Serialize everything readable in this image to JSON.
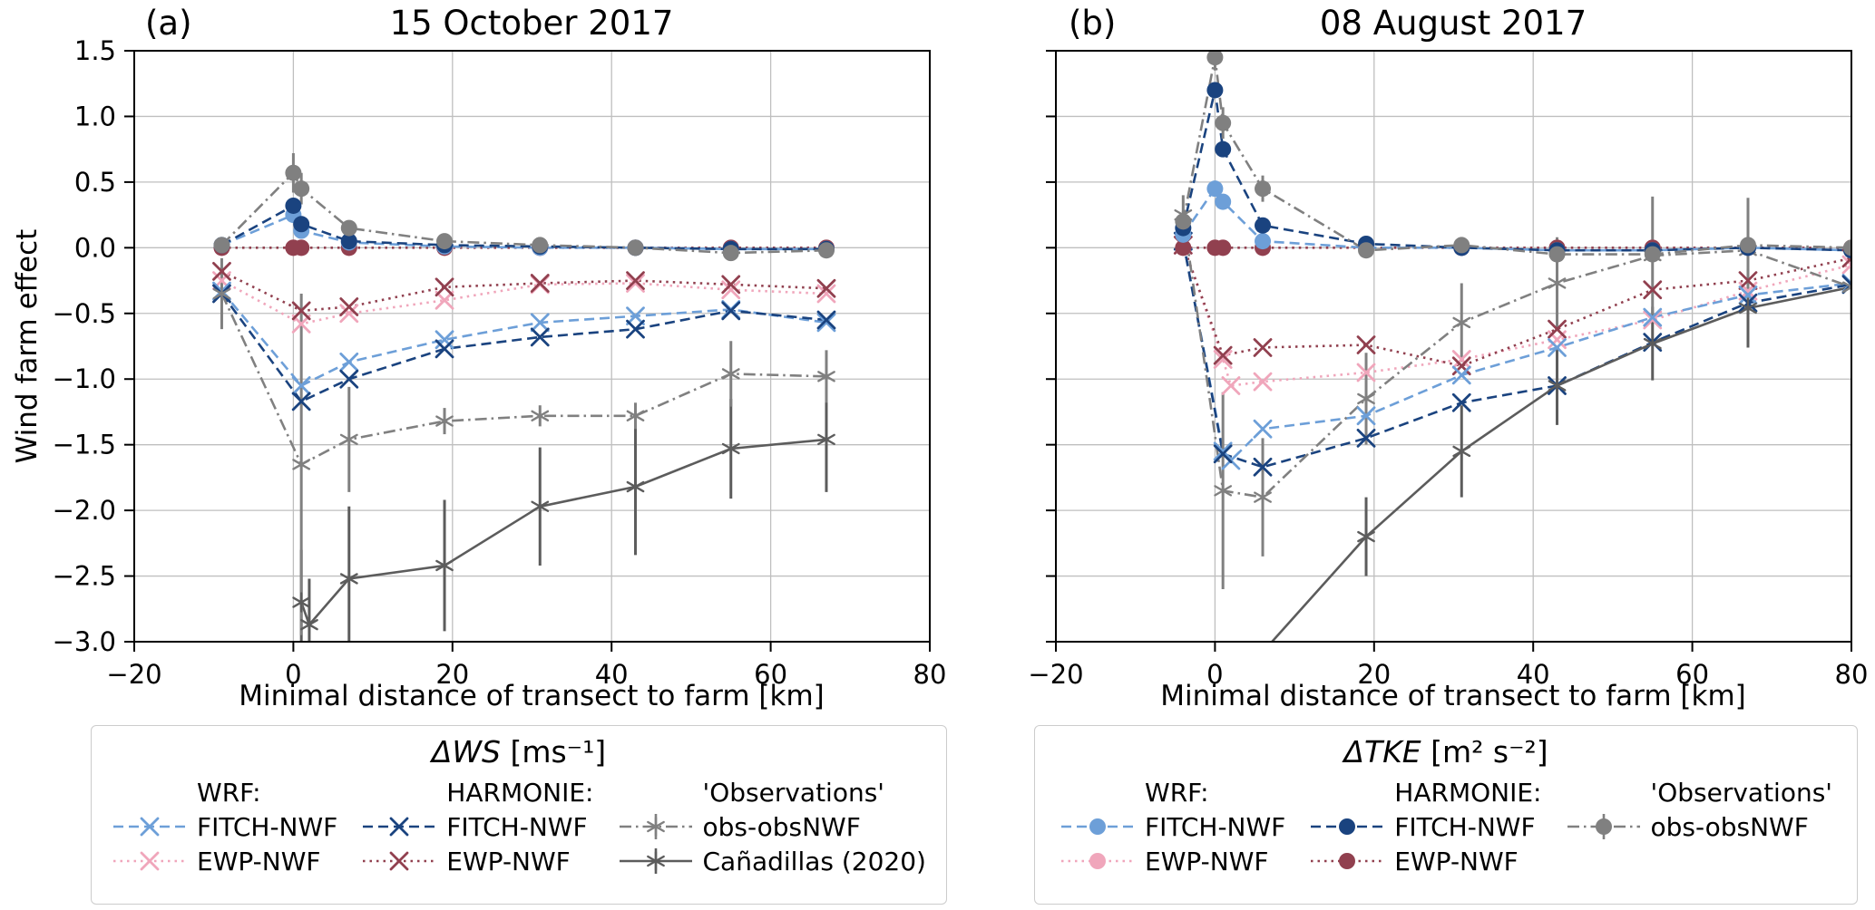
{
  "figure": {
    "ylabel": "Wind farm effect"
  },
  "styles": {
    "ws_wrf_fitch": {
      "color": "#6D9FD8",
      "ls": "dashed",
      "marker": "x",
      "errorbar": false
    },
    "ws_wrf_ewp": {
      "color": "#F0A6BB",
      "ls": "dotted",
      "marker": "x",
      "errorbar": false
    },
    "ws_harmonie_fitch": {
      "color": "#1A437F",
      "ls": "dashed",
      "marker": "x",
      "errorbar": false
    },
    "ws_harmonie_ewp": {
      "color": "#91404F",
      "ls": "dotted",
      "marker": "x",
      "errorbar": false
    },
    "ws_obs": {
      "color": "#808080",
      "ls": "dashdot",
      "marker": "star",
      "errorbar": true
    },
    "ws_canadillas": {
      "color": "#5C5C5C",
      "ls": "solid",
      "marker": "star",
      "errorbar": true
    },
    "tke_wrf_fitch": {
      "color": "#6D9FD8",
      "ls": "dashed",
      "marker": "o",
      "errorbar": false
    },
    "tke_wrf_ewp": {
      "color": "#F0A6BB",
      "ls": "dotted",
      "marker": "o",
      "errorbar": false
    },
    "tke_harmonie_fitch": {
      "color": "#1A437F",
      "ls": "dashed",
      "marker": "o",
      "errorbar": false
    },
    "tke_harmonie_ewp": {
      "color": "#91404F",
      "ls": "dotted",
      "marker": "o",
      "errorbar": false
    },
    "tke_obs": {
      "color": "#808080",
      "ls": "dashdot",
      "marker": "o",
      "errorbar": true
    }
  },
  "chart_data": [
    {
      "id": "a",
      "type": "line",
      "tag": "(a)",
      "title": "15 October 2017",
      "xlabel": "Minimal distance of transect to farm [km]",
      "ylabel": "Wind farm effect",
      "xlim": [
        -20,
        80
      ],
      "ylim": [
        -3.0,
        1.5
      ],
      "xticks": [
        -20,
        0,
        20,
        40,
        60,
        80
      ],
      "xtick_labels": [
        "−20",
        "0",
        "20",
        "40",
        "60",
        "80"
      ],
      "yticks": [
        1.5,
        1.0,
        0.5,
        0.0,
        -0.5,
        -1.0,
        -1.5,
        -2.0,
        -2.5,
        -3.0
      ],
      "ytick_labels": [
        "1.5",
        "1.0",
        "0.5",
        "0.0",
        "−0.5",
        "−1.0",
        "−1.5",
        "−2.0",
        "−2.5",
        "−3.0"
      ],
      "show_ytick_labels": true,
      "grid": true,
      "series": [
        {
          "name": "ΔWS WRF EWP-NWF",
          "style": "ws_wrf_ewp",
          "x": [
            -9,
            1,
            7,
            19,
            31,
            43,
            55,
            67
          ],
          "y": [
            -0.25,
            -0.58,
            -0.5,
            -0.4,
            -0.28,
            -0.27,
            -0.32,
            -0.35
          ]
        },
        {
          "name": "ΔWS HARMONIE EWP-NWF",
          "style": "ws_harmonie_ewp",
          "x": [
            -9,
            1,
            7,
            19,
            31,
            43,
            55,
            67
          ],
          "y": [
            -0.18,
            -0.48,
            -0.45,
            -0.3,
            -0.27,
            -0.25,
            -0.28,
            -0.31
          ]
        },
        {
          "name": "ΔWS WRF FITCH-NWF",
          "style": "ws_wrf_fitch",
          "x": [
            -9,
            1,
            7,
            19,
            31,
            43,
            55,
            67
          ],
          "y": [
            -0.33,
            -1.05,
            -0.87,
            -0.7,
            -0.57,
            -0.52,
            -0.47,
            -0.57
          ]
        },
        {
          "name": "ΔWS HARMONIE FITCH-NWF",
          "style": "ws_harmonie_fitch",
          "x": [
            -9,
            1,
            7,
            19,
            31,
            43,
            55,
            67
          ],
          "y": [
            -0.35,
            -1.17,
            -1.0,
            -0.77,
            -0.68,
            -0.62,
            -0.48,
            -0.55
          ]
        },
        {
          "name": "ΔWS Cañadillas (2020)",
          "style": "ws_canadillas",
          "x": [
            1,
            2,
            7,
            19,
            31,
            43,
            55,
            67
          ],
          "y": [
            -2.7,
            -2.87,
            -2.52,
            -2.42,
            -1.97,
            -1.82,
            -1.53,
            -1.46
          ],
          "yerr": [
            0.4,
            0.35,
            0.55,
            0.5,
            0.45,
            0.52,
            0.38,
            0.4
          ]
        },
        {
          "name": "ΔWS obs-obsNWF",
          "style": "ws_obs",
          "x": [
            -9,
            1,
            7,
            19,
            31,
            43,
            55,
            67
          ],
          "y": [
            -0.35,
            -1.65,
            -1.46,
            -1.32,
            -1.28,
            -1.28,
            -0.96,
            -0.98
          ],
          "yerr": [
            0.27,
            1.3,
            0.4,
            0.1,
            0.08,
            0.1,
            0.25,
            0.2
          ]
        },
        {
          "name": "ΔTKE WRF EWP-NWF",
          "style": "tke_wrf_ewp",
          "x": [
            -9,
            0,
            1,
            7,
            19,
            31,
            43,
            55,
            67
          ],
          "y": [
            0,
            0,
            0,
            0,
            0,
            0,
            0,
            0,
            0
          ]
        },
        {
          "name": "ΔTKE HARMONIE EWP-NWF",
          "style": "tke_harmonie_ewp",
          "x": [
            -9,
            0,
            1,
            7,
            19,
            31,
            43,
            55,
            67
          ],
          "y": [
            0,
            0,
            0,
            0,
            0,
            0,
            0,
            0,
            0
          ]
        },
        {
          "name": "ΔTKE WRF FITCH-NWF",
          "style": "tke_wrf_fitch",
          "x": [
            -9,
            0,
            1,
            7,
            19,
            31,
            43,
            55,
            67
          ],
          "y": [
            0.02,
            0.25,
            0.13,
            0.04,
            0.01,
            0.0,
            0.0,
            -0.01,
            -0.01
          ]
        },
        {
          "name": "ΔTKE HARMONIE FITCH-NWF",
          "style": "tke_harmonie_fitch",
          "x": [
            -9,
            0,
            1,
            7,
            19,
            31,
            43,
            55,
            67
          ],
          "y": [
            0.02,
            0.32,
            0.18,
            0.05,
            0.02,
            0.01,
            0.0,
            -0.01,
            -0.01
          ]
        },
        {
          "name": "ΔTKE obs-obsNWF",
          "style": "tke_obs",
          "x": [
            -9,
            0,
            1,
            7,
            19,
            31,
            43,
            55,
            67
          ],
          "y": [
            0.02,
            0.57,
            0.45,
            0.15,
            0.05,
            0.02,
            0.0,
            -0.04,
            -0.02
          ],
          "yerr": [
            0.05,
            0.15,
            0.12,
            0.06,
            0.03,
            0.02,
            0.02,
            0.04,
            0.02
          ]
        }
      ]
    },
    {
      "id": "b",
      "type": "line",
      "tag": "(b)",
      "title": "08 August 2017",
      "xlabel": "Minimal distance of transect to farm [km]",
      "ylabel": "Wind farm effect",
      "xlim": [
        -20,
        80
      ],
      "ylim": [
        -3.0,
        1.5
      ],
      "xticks": [
        -20,
        0,
        20,
        40,
        60,
        80
      ],
      "xtick_labels": [
        "−20",
        "0",
        "20",
        "40",
        "60",
        "80"
      ],
      "yticks": [
        1.5,
        1.0,
        0.5,
        0.0,
        -0.5,
        -1.0,
        -1.5,
        -2.0,
        -2.5,
        -3.0
      ],
      "ytick_labels": [
        "1.5",
        "1.0",
        "0.5",
        "0.0",
        "−0.5",
        "−1.0",
        "−1.5",
        "−2.0",
        "−2.5",
        "−3.0"
      ],
      "show_ytick_labels": false,
      "grid": true,
      "series": [
        {
          "name": "ΔWS WRF EWP-NWF",
          "style": "ws_wrf_ewp",
          "x": [
            -4,
            1,
            2,
            6,
            19,
            31,
            43,
            55,
            67,
            80
          ],
          "y": [
            0.02,
            -0.85,
            -1.05,
            -1.02,
            -0.95,
            -0.85,
            -0.7,
            -0.55,
            -0.33,
            -0.13
          ]
        },
        {
          "name": "ΔWS HARMONIE EWP-NWF",
          "style": "ws_harmonie_ewp",
          "x": [
            -4,
            1,
            6,
            19,
            31,
            43,
            55,
            67,
            80
          ],
          "y": [
            0.02,
            -0.82,
            -0.76,
            -0.74,
            -0.9,
            -0.62,
            -0.32,
            -0.25,
            -0.08
          ]
        },
        {
          "name": "ΔWS WRF FITCH-NWF",
          "style": "ws_wrf_fitch",
          "x": [
            -4,
            1,
            2,
            6,
            19,
            31,
            43,
            55,
            67,
            80
          ],
          "y": [
            0.05,
            -1.55,
            -1.62,
            -1.38,
            -1.28,
            -0.97,
            -0.76,
            -0.53,
            -0.36,
            -0.27
          ]
        },
        {
          "name": "ΔWS HARMONIE FITCH-NWF",
          "style": "ws_harmonie_fitch",
          "x": [
            -4,
            1,
            6,
            19,
            31,
            43,
            55,
            67,
            80
          ],
          "y": [
            0.05,
            -1.57,
            -1.67,
            -1.45,
            -1.18,
            -1.05,
            -0.72,
            -0.42,
            -0.28
          ]
        },
        {
          "name": "ΔWS Cañadillas (2020)",
          "style": "ws_canadillas",
          "x": [
            2,
            19,
            31,
            43,
            55,
            67,
            80
          ],
          "y": [
            -3.35,
            -2.2,
            -1.55,
            -1.05,
            -0.73,
            -0.46,
            -0.3
          ],
          "yerr": [
            0.0,
            0.3,
            0.35,
            0.3,
            0.28,
            0.3,
            0.25
          ]
        },
        {
          "name": "ΔWS obs-obsNWF",
          "style": "ws_obs",
          "x": [
            -4,
            1,
            6,
            19,
            31,
            43,
            55,
            67,
            80
          ],
          "y": [
            0.25,
            -1.85,
            -1.9,
            -1.15,
            -0.57,
            -0.27,
            -0.06,
            -0.02,
            -0.3
          ],
          "yerr": [
            0.15,
            0.75,
            0.45,
            0.35,
            0.3,
            0.35,
            0.45,
            0.4,
            0.25
          ]
        },
        {
          "name": "ΔTKE WRF EWP-NWF",
          "style": "tke_wrf_ewp",
          "x": [
            -4,
            0,
            1,
            6,
            19,
            31,
            43,
            55,
            67,
            80
          ],
          "y": [
            0,
            0,
            0,
            0,
            0,
            0,
            0,
            0,
            0,
            0
          ]
        },
        {
          "name": "ΔTKE HARMONIE EWP-NWF",
          "style": "tke_harmonie_ewp",
          "x": [
            -4,
            0,
            1,
            6,
            19,
            31,
            43,
            55,
            67,
            80
          ],
          "y": [
            0,
            0,
            0,
            0,
            0,
            0,
            0,
            0,
            0,
            0
          ]
        },
        {
          "name": "ΔTKE WRF FITCH-NWF",
          "style": "tke_wrf_fitch",
          "x": [
            -4,
            0,
            1,
            6,
            19,
            31,
            43,
            55,
            67,
            80
          ],
          "y": [
            0.1,
            0.45,
            0.35,
            0.05,
            0.0,
            0.0,
            -0.02,
            -0.02,
            0.0,
            -0.02
          ]
        },
        {
          "name": "ΔTKE HARMONIE FITCH-NWF",
          "style": "tke_harmonie_fitch",
          "x": [
            -4,
            0,
            1,
            6,
            19,
            31,
            43,
            55,
            67,
            80
          ],
          "y": [
            0.15,
            1.2,
            0.75,
            0.17,
            0.03,
            0.0,
            -0.02,
            -0.02,
            0.0,
            -0.02
          ]
        },
        {
          "name": "ΔTKE obs-obsNWF",
          "style": "tke_obs",
          "x": [
            -4,
            0,
            1,
            6,
            19,
            31,
            43,
            55,
            67,
            80
          ],
          "y": [
            0.2,
            1.45,
            0.95,
            0.45,
            -0.02,
            0.02,
            -0.05,
            -0.05,
            0.02,
            0.0
          ],
          "yerr": [
            0.08,
            0.1,
            0.12,
            0.1,
            0.05,
            0.04,
            0.05,
            0.05,
            0.04,
            0.04
          ]
        }
      ]
    }
  ],
  "legends": [
    {
      "title_math": "ΔWS",
      "title_units": " [ms⁻¹]",
      "columns": [
        {
          "header": "WRF:",
          "entries": [
            {
              "label": "FITCH-NWF",
              "style": "ws_wrf_fitch"
            },
            {
              "label": "EWP-NWF",
              "style": "ws_wrf_ewp"
            }
          ]
        },
        {
          "header": "HARMONIE:",
          "entries": [
            {
              "label": "FITCH-NWF",
              "style": "ws_harmonie_fitch"
            },
            {
              "label": "EWP-NWF",
              "style": "ws_harmonie_ewp"
            }
          ]
        },
        {
          "header": "'Observations'",
          "entries": [
            {
              "label": "obs-obsNWF",
              "style": "ws_obs"
            },
            {
              "label": "Cañadillas (2020)",
              "style": "ws_canadillas"
            }
          ]
        }
      ]
    },
    {
      "title_math": "ΔTKE",
      "title_units": " [m² s⁻²]",
      "columns": [
        {
          "header": "WRF:",
          "entries": [
            {
              "label": "FITCH-NWF",
              "style": "tke_wrf_fitch"
            },
            {
              "label": "EWP-NWF",
              "style": "tke_wrf_ewp"
            }
          ]
        },
        {
          "header": "HARMONIE:",
          "entries": [
            {
              "label": "FITCH-NWF",
              "style": "tke_harmonie_fitch"
            },
            {
              "label": "EWP-NWF",
              "style": "tke_harmonie_ewp"
            }
          ]
        },
        {
          "header": "'Observations'",
          "entries": [
            {
              "label": "obs-obsNWF",
              "style": "tke_obs"
            }
          ]
        }
      ]
    }
  ]
}
